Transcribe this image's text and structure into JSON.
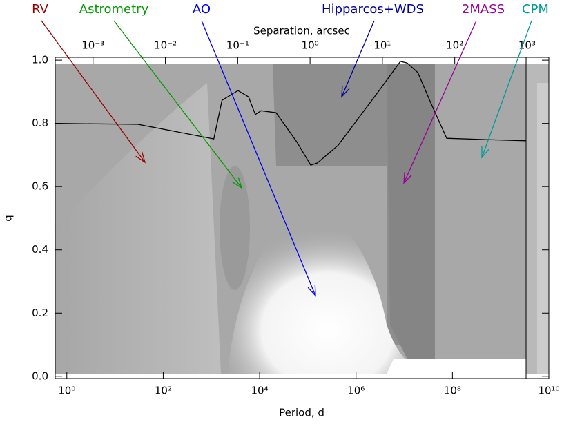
{
  "chart_data": {
    "type": "line",
    "xlabel": "Period, d",
    "ylabel": "q",
    "x2label": "Separation, arcsec",
    "xscale": "log",
    "x2scale": "log",
    "xlim": [
      0.575,
      10000000000
    ],
    "ylim": [
      -0.007,
      1.009
    ],
    "x2lim": [
      0.0003,
      2000
    ],
    "xticks": [
      {
        "value": 1,
        "label": "10⁰"
      },
      {
        "value": 100,
        "label": "10²"
      },
      {
        "value": 10000,
        "label": "10⁴"
      },
      {
        "value": 1000000,
        "label": "10⁶"
      },
      {
        "value": 100000000,
        "label": "10⁸"
      },
      {
        "value": 10000000000,
        "label": "10¹⁰"
      }
    ],
    "x2ticks": [
      {
        "value": 0.001,
        "label": "10⁻³"
      },
      {
        "value": 0.01,
        "label": "10⁻²"
      },
      {
        "value": 0.1,
        "label": "10⁻¹"
      },
      {
        "value": 1,
        "label": "10⁰"
      },
      {
        "value": 10,
        "label": "10¹"
      },
      {
        "value": 100,
        "label": "10²"
      },
      {
        "value": 1000,
        "label": "10³"
      }
    ],
    "yticks": [
      {
        "value": 0,
        "label": "0.0"
      },
      {
        "value": 0.2,
        "label": "0.2"
      },
      {
        "value": 0.4,
        "label": "0.4"
      },
      {
        "value": 0.6,
        "label": "0.6"
      },
      {
        "value": 0.8,
        "label": "0.8"
      },
      {
        "value": 1,
        "label": "1.0"
      }
    ],
    "x": [
      0.575,
      30,
      1120,
      1660,
      3550,
      5890,
      8130,
      10700,
      21900,
      58900,
      115000,
      158000,
      427000,
      1150000,
      3090000,
      8320000,
      11500000,
      19100000,
      36300000,
      75900000,
      437000000,
      3390000000
    ],
    "series": [
      {
        "color": "#000000",
        "values": [
          0.8,
          0.797,
          0.751,
          0.873,
          0.904,
          0.884,
          0.828,
          0.84,
          0.834,
          0.742,
          0.668,
          0.675,
          0.731,
          0.819,
          0.906,
          0.996,
          0.991,
          0.961,
          0.862,
          0.753,
          0.749,
          0.745
        ]
      }
    ],
    "annotations": [
      {
        "text": "RV",
        "color": "#990000"
      },
      {
        "text": "Astrometry",
        "color": "#009900"
      },
      {
        "text": "AO",
        "color": "#0000ee"
      },
      {
        "text": "Hipparcos+WDS",
        "color": "#000099"
      },
      {
        "text": "2MASS",
        "color": "#990099"
      },
      {
        "text": "CPM",
        "color": "#009999"
      }
    ]
  }
}
